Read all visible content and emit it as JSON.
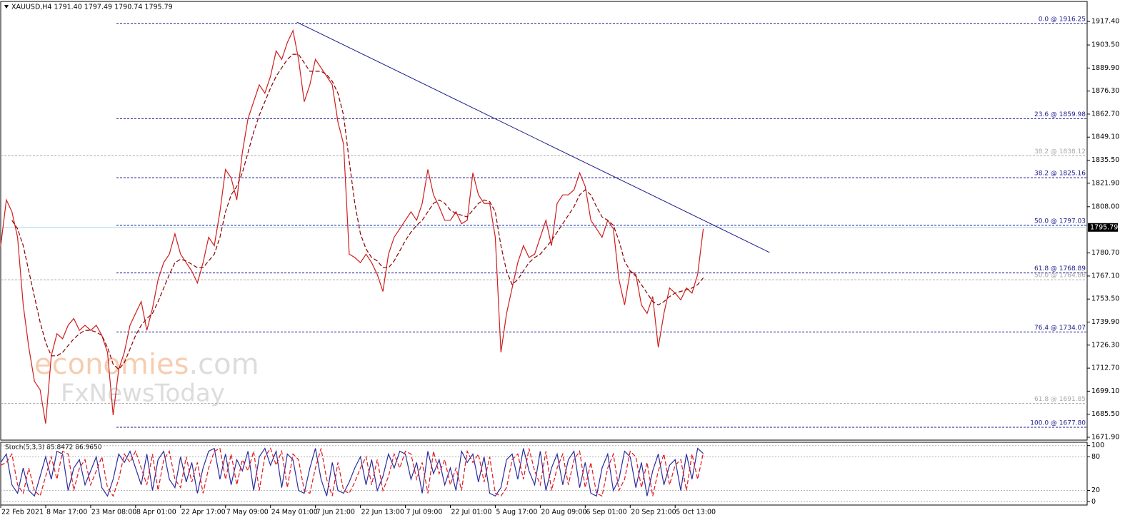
{
  "chart_data": [
    {
      "type": "line",
      "title": "XAUUSD,H4  1791.40 1797.49 1790.74 1795.79",
      "annotations": [
        "economies",
        ".com",
        "FxNewsToday"
      ],
      "categories": [
        "22 Feb 2021",
        null,
        null,
        null,
        null,
        null,
        null,
        null,
        "8 Mar 17:00",
        null,
        null,
        null,
        null,
        null,
        null,
        null,
        "23 Mar 08:00",
        null,
        null,
        null,
        null,
        null,
        null,
        null,
        "8 Apr 01:00",
        null,
        null,
        null,
        null,
        null,
        null,
        null,
        "22 Apr 17:00",
        null,
        null,
        null,
        null,
        null,
        null,
        null,
        "7 May 09:00",
        null,
        null,
        null,
        null,
        null,
        null,
        null,
        "24 May 01:00",
        null,
        null,
        null,
        null,
        null,
        null,
        null,
        "7 Jun 21:00",
        null,
        null,
        null,
        null,
        null,
        null,
        null,
        "22 Jun 13:00",
        null,
        null,
        null,
        null,
        null,
        null,
        null,
        "7 Jul 09:00",
        null,
        null,
        null,
        null,
        null,
        null,
        null,
        "22 Jul 01:00",
        null,
        null,
        null,
        null,
        null,
        null,
        null,
        "5 Aug 17:00",
        null,
        null,
        null,
        null,
        null,
        null,
        null,
        "20 Aug 09:00",
        null,
        null,
        null,
        null,
        null,
        null,
        null,
        "6 Sep 01:00",
        null,
        null,
        null,
        null,
        null,
        null,
        null,
        "20 Sep 21:00",
        null,
        null,
        null,
        null,
        null,
        null,
        null,
        "5 Oct 13:00",
        null,
        null,
        null,
        null,
        null
      ],
      "xlim": [
        0,
        193.3
      ],
      "series": [
        {
          "color": "#d01c1c",
          "style": "solid",
          "values": [
            1785,
            1812,
            1805,
            1790,
            1750,
            1725,
            1705,
            1700,
            1680,
            1720,
            1733,
            1730,
            1738,
            1742,
            1735,
            1738,
            1735,
            1738,
            1732,
            1722,
            1685,
            1712,
            1722,
            1738,
            1745,
            1752,
            1735,
            1748,
            1765,
            1775,
            1780,
            1792,
            1780,
            1775,
            1770,
            1763,
            1775,
            1790,
            1785,
            1805,
            1830,
            1825,
            1812,
            1840,
            1860,
            1870,
            1880,
            1875,
            1885,
            1900,
            1895,
            1905,
            1912,
            1895,
            1870,
            1880,
            1895,
            1890,
            1885,
            1880,
            1858,
            1845,
            1780,
            1778,
            1775,
            1780,
            1775,
            1768,
            1758,
            1780,
            1790,
            1795,
            1800,
            1805,
            1800,
            1810,
            1830,
            1815,
            1808,
            1800,
            1800,
            1805,
            1798,
            1800,
            1828,
            1815,
            1810,
            1810,
            1790,
            1722,
            1745,
            1760,
            1775,
            1785,
            1778,
            1780,
            1790,
            1800,
            1785,
            1810,
            1815,
            1815,
            1818,
            1828,
            1820,
            1800,
            1795,
            1790,
            1800,
            1795,
            1765,
            1750,
            1770,
            1768,
            1750,
            1745,
            1755,
            1725,
            1745,
            1760,
            1757,
            1753,
            1760,
            1757,
            1768,
            1795
          ]
        },
        {
          "color": "#8b0000",
          "style": "dashed",
          "values": [
            null,
            null,
            1800,
            1795,
            1785,
            1770,
            1755,
            1740,
            1728,
            1720,
            1720,
            1722,
            1726,
            1730,
            1733,
            1735,
            1735,
            1734,
            1732,
            1725,
            1715,
            1712,
            1716,
            1724,
            1732,
            1738,
            1742,
            1745,
            1752,
            1760,
            1768,
            1775,
            1777,
            1776,
            1774,
            1772,
            1772,
            1776,
            1780,
            1790,
            1805,
            1815,
            1820,
            1828,
            1840,
            1852,
            1862,
            1870,
            1878,
            1885,
            1890,
            1895,
            1898,
            1898,
            1893,
            1888,
            1888,
            1888,
            1886,
            1882,
            1875,
            1862,
            1835,
            1810,
            1792,
            1783,
            1778,
            1776,
            1772,
            1772,
            1776,
            1782,
            1788,
            1793,
            1797,
            1800,
            1805,
            1810,
            1812,
            1810,
            1806,
            1804,
            1803,
            1802,
            1806,
            1810,
            1812,
            1811,
            1805,
            1785,
            1770,
            1762,
            1765,
            1770,
            1775,
            1778,
            1780,
            1784,
            1788,
            1793,
            1798,
            1803,
            1808,
            1815,
            1818,
            1815,
            1808,
            1802,
            1800,
            1797,
            1788,
            1776,
            1770,
            1767,
            1762,
            1757,
            1752,
            1750,
            1752,
            1755,
            1757,
            1758,
            1759,
            1760,
            1762,
            1766
          ]
        }
      ],
      "trendline": {
        "color": "#1a1a8c",
        "x": [
          52.7,
          136.8
        ],
        "values": [
          1917.0,
          1781.0
        ]
      },
      "ylim": [
        1670.2,
        1928.8
      ],
      "yticks": [
        {
          "value": 1917.4,
          "label": "1917.40"
        },
        {
          "value": 1903.5,
          "label": "1903.50"
        },
        {
          "value": 1889.9,
          "label": "1889.90"
        },
        {
          "value": 1876.3,
          "label": "1876.30"
        },
        {
          "value": 1862.7,
          "label": "1862.70"
        },
        {
          "value": 1849.1,
          "label": "1849.10"
        },
        {
          "value": 1835.5,
          "label": "1835.50"
        },
        {
          "value": 1821.9,
          "label": "1821.90"
        },
        {
          "value": 1808,
          "label": "1808.00"
        },
        {
          "value": 1780.7,
          "label": "1780.70"
        },
        {
          "value": 1767.1,
          "label": "1767.10"
        },
        {
          "value": 1753.5,
          "label": "1753.50"
        },
        {
          "value": 1739.9,
          "label": "1739.90"
        },
        {
          "value": 1726.3,
          "label": "1726.30"
        },
        {
          "value": 1712.7,
          "label": "1712.70"
        },
        {
          "value": 1699.1,
          "label": "1699.10"
        },
        {
          "value": 1685.5,
          "label": "1685.50"
        },
        {
          "value": 1671.9,
          "label": "1671.90"
        }
      ],
      "fib_color": "#1a1a8c",
      "fib_levels": [
        {
          "value": 1916.25,
          "label": "0.0 @ 1916.25"
        },
        {
          "value": 1859.98,
          "label": "23.6 @ 1859.98"
        },
        {
          "value": 1825.16,
          "label": "38.2 @ 1825.16"
        },
        {
          "value": 1797.03,
          "label": "50.0 @ 1797.03"
        },
        {
          "value": 1768.89,
          "label": "61.8 @ 1768.89"
        },
        {
          "value": 1734.07,
          "label": "76.4 @ 1734.07"
        },
        {
          "value": 1677.8,
          "label": "100.0 @ 1677.80"
        }
      ],
      "fib_alt_color": "#a8a8a8",
      "fib_levels_alt": [
        {
          "value": 1838.12,
          "label": "38.2 @ 1838.12"
        },
        {
          "value": 1764.86,
          "label": "50.0 @ 1764.86"
        },
        {
          "value": 1691.85,
          "label": "61.8 @ 1691.85"
        }
      ],
      "current_price": {
        "value": 1795.79,
        "label": "1795.79",
        "color": "#a8d8ee"
      }
    },
    {
      "type": "line",
      "title": "Stoch(5,3,3) 85.8472 86.9650",
      "ylim": [
        -6,
        106
      ],
      "yticks": [
        0,
        20,
        80,
        100
      ],
      "series": [
        {
          "color": "#2b2b9e",
          "style": "solid",
          "values": [
            70,
            85,
            30,
            15,
            60,
            20,
            10,
            45,
            80,
            40,
            90,
            85,
            20,
            60,
            75,
            30,
            55,
            80,
            25,
            10,
            40,
            85,
            70,
            90,
            60,
            30,
            85,
            20,
            75,
            90,
            40,
            25,
            80,
            35,
            70,
            15,
            60,
            90,
            95,
            40,
            85,
            30,
            75,
            55,
            90,
            20,
            80,
            95,
            65,
            90,
            25,
            85,
            75,
            20,
            15,
            60,
            95,
            40,
            10,
            70,
            20,
            15,
            35,
            60,
            80,
            30,
            75,
            20,
            45,
            85,
            60,
            90,
            85,
            40,
            70,
            15,
            90,
            50,
            75,
            30,
            60,
            20,
            90,
            70,
            85,
            35,
            80,
            15,
            10,
            25,
            75,
            85,
            40,
            95,
            55,
            30,
            90,
            20,
            60,
            85,
            30,
            75,
            90,
            25,
            70,
            15,
            10,
            60,
            85,
            20,
            40,
            90,
            80,
            25,
            70,
            10,
            55,
            85,
            30,
            65,
            75,
            20,
            85,
            40,
            95,
            85.8472
          ]
        },
        {
          "color": "#e0141e",
          "style": "dashed",
          "values": [
            65,
            70,
            85,
            30,
            15,
            60,
            20,
            10,
            45,
            80,
            40,
            90,
            85,
            20,
            60,
            75,
            30,
            55,
            80,
            25,
            10,
            40,
            85,
            70,
            90,
            60,
            30,
            85,
            20,
            75,
            90,
            40,
            25,
            80,
            35,
            70,
            15,
            60,
            90,
            95,
            40,
            85,
            30,
            75,
            55,
            90,
            20,
            80,
            95,
            65,
            90,
            25,
            85,
            75,
            20,
            15,
            60,
            95,
            40,
            10,
            70,
            20,
            15,
            35,
            60,
            80,
            30,
            75,
            20,
            45,
            85,
            60,
            90,
            85,
            40,
            70,
            15,
            90,
            50,
            75,
            30,
            60,
            20,
            90,
            70,
            85,
            35,
            80,
            15,
            10,
            25,
            75,
            85,
            40,
            95,
            55,
            30,
            90,
            20,
            60,
            85,
            30,
            75,
            90,
            25,
            70,
            15,
            10,
            60,
            85,
            20,
            40,
            90,
            80,
            25,
            70,
            10,
            55,
            85,
            30,
            65,
            75,
            20,
            85,
            40,
            86.965
          ]
        }
      ]
    }
  ]
}
